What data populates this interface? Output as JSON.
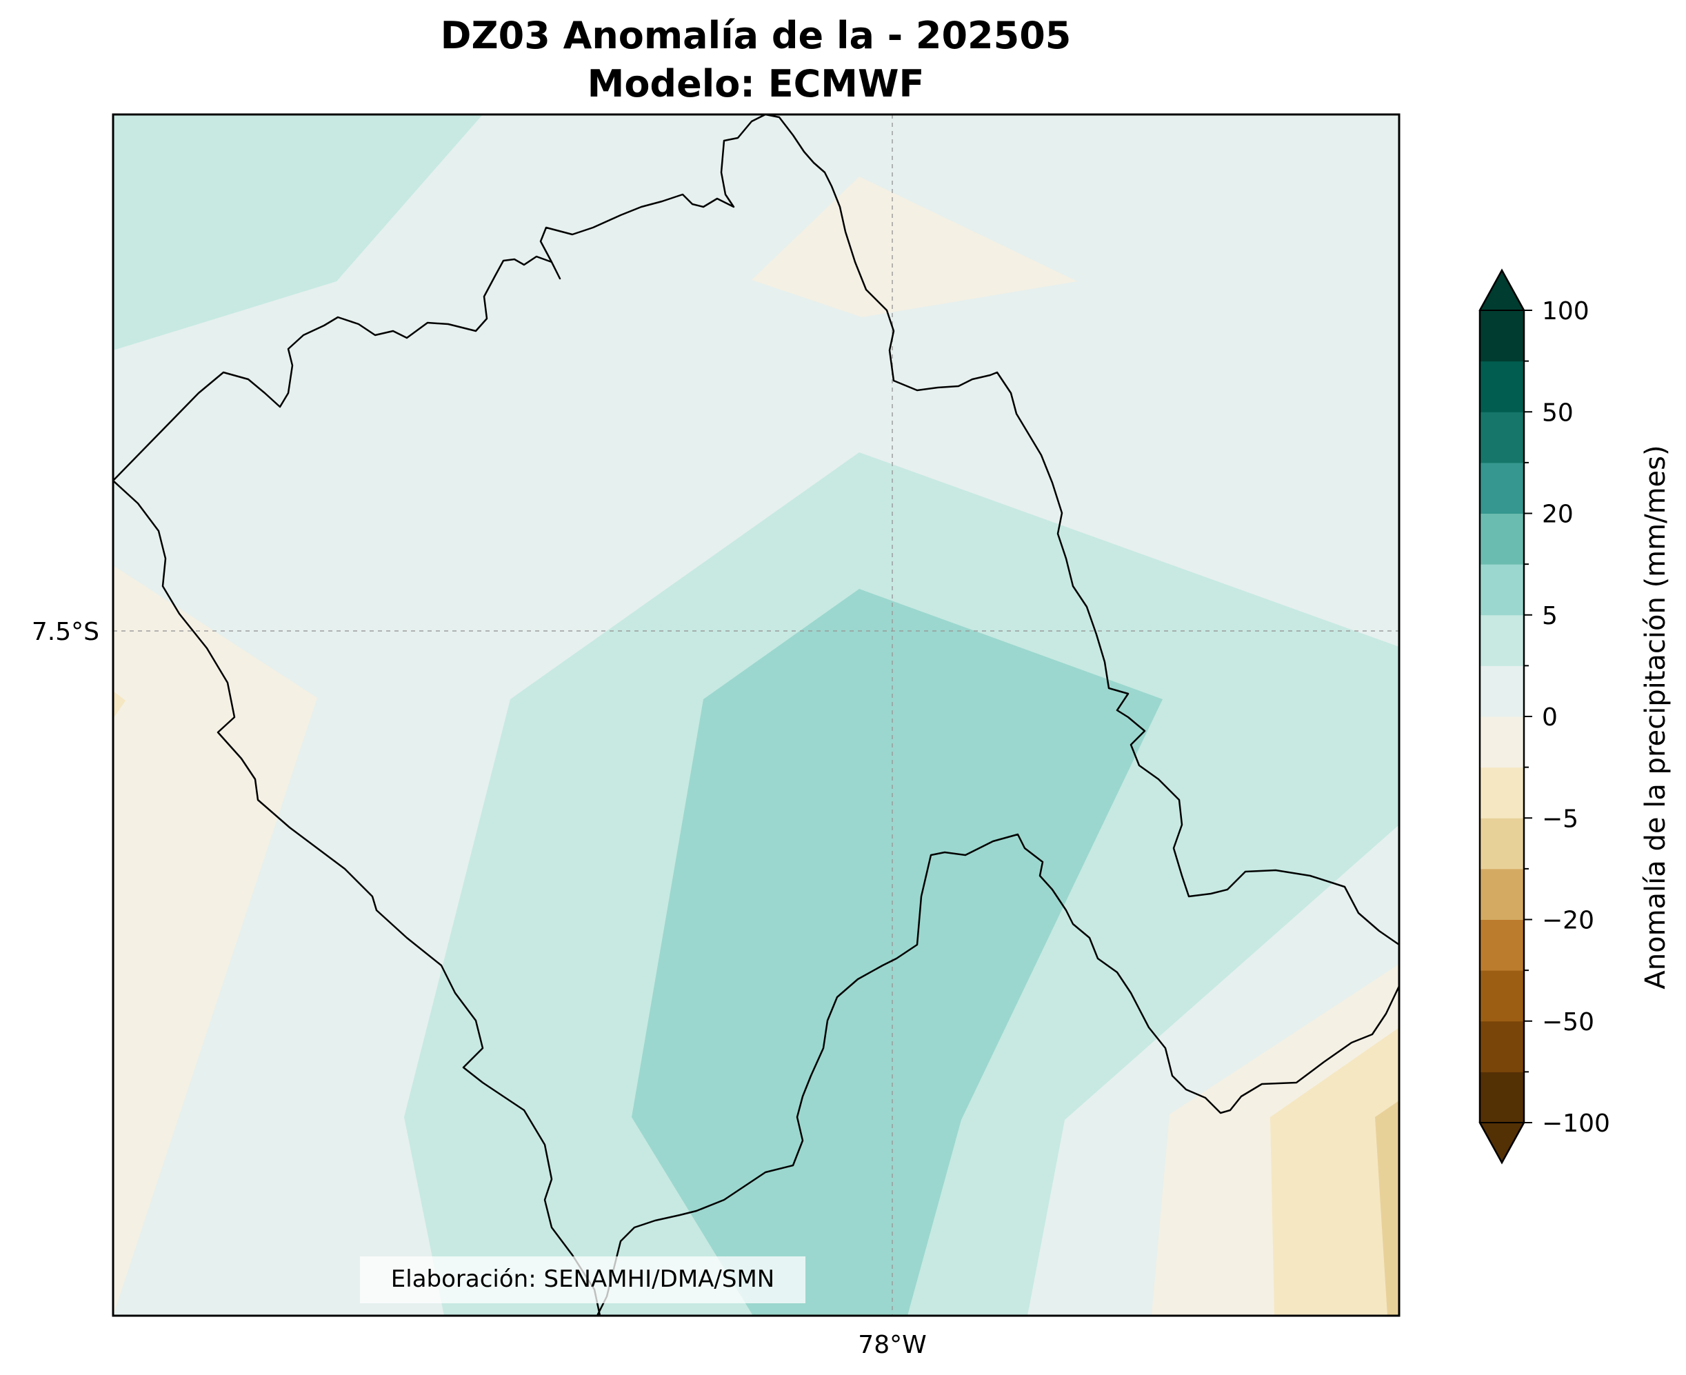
{
  "title": {
    "line1": "DZ03 Anomalía de la - 202505",
    "line2": "Modelo: ECMWF"
  },
  "axes": {
    "lat_tick_label": "7.5°S",
    "lon_tick_label": "78°W"
  },
  "credit": "Elaboración: SENAMHI/DMA/SMN",
  "colorbar": {
    "label": "Anomalía de la precipitación (mm/mes)",
    "tick_labels": [
      "100",
      "50",
      "20",
      "5",
      "0",
      "−5",
      "−20",
      "−50",
      "−100"
    ],
    "levels": [
      -100,
      -75,
      -50,
      -35,
      -20,
      -10,
      -5,
      -2.5,
      0,
      2.5,
      5,
      10,
      20,
      35,
      50,
      75,
      100
    ],
    "colors_low_to_high": [
      "#543005",
      "#7a4508",
      "#9c5e13",
      "#bc7c2d",
      "#d4aa62",
      "#e8d199",
      "#f5e7c2",
      "#f4f0e4",
      "#e6f0ee",
      "#c7e9e2",
      "#9bd7ce",
      "#6bbcb0",
      "#35978f",
      "#157669",
      "#005d4f",
      "#003c30"
    ],
    "extend": "both"
  },
  "map": {
    "background_class_color": "#e6f0ee",
    "grid": true
  }
}
